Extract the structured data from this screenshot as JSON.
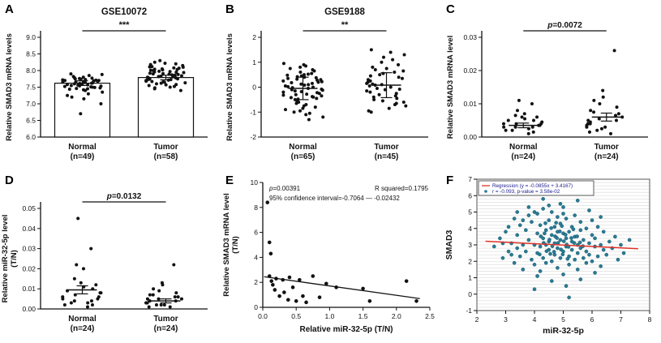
{
  "figure": {
    "background": "#ffffff",
    "text_color": "#111111"
  },
  "chart_data": [
    {
      "panel": "A",
      "type": "dot-groups",
      "title": "GSE10072",
      "sig": "***",
      "ylabel": "Relative SMAD3 mRNA levels",
      "ylim": [
        6.0,
        9.0
      ],
      "yticks": [
        "6.0",
        "6.5",
        "7.0",
        "7.5",
        "8.0",
        "8.5",
        "9.0"
      ],
      "bar_style": "bar",
      "groups": [
        {
          "label": "Normal",
          "n_label": "(n=49)",
          "mean": 7.62,
          "err": 0.07,
          "values": [
            7.45,
            7.5,
            7.52,
            7.55,
            7.57,
            7.6,
            7.62,
            7.65,
            7.68,
            7.7,
            7.72,
            7.75,
            7.48,
            7.53,
            7.58,
            7.63,
            7.67,
            7.71,
            7.74,
            7.78,
            7.42,
            7.46,
            7.51,
            7.56,
            7.61,
            7.66,
            7.69,
            7.73,
            7.77,
            7.8,
            7.44,
            7.49,
            7.54,
            7.59,
            7.64,
            7.7,
            7.76,
            7.82,
            7.85,
            7.4,
            7.35,
            7.3,
            7.25,
            7.2,
            7.15,
            7.0,
            6.7,
            7.88,
            7.9
          ]
        },
        {
          "label": "Tumor",
          "n_label": "(n=58)",
          "mean": 7.79,
          "err": 0.07,
          "values": [
            7.5,
            7.55,
            7.6,
            7.62,
            7.65,
            7.68,
            7.7,
            7.72,
            7.74,
            7.76,
            7.78,
            7.8,
            7.82,
            7.84,
            7.86,
            7.88,
            7.9,
            7.92,
            7.95,
            7.98,
            8.0,
            8.02,
            8.05,
            8.08,
            8.1,
            8.15,
            8.2,
            8.25,
            7.52,
            7.57,
            7.63,
            7.67,
            7.71,
            7.75,
            7.79,
            7.83,
            7.87,
            7.91,
            7.94,
            7.97,
            8.01,
            8.04,
            8.07,
            8.12,
            8.18,
            7.45,
            7.4,
            7.58,
            7.66,
            7.73,
            7.81,
            7.89,
            7.96,
            8.03,
            8.11,
            8.22,
            8.3,
            7.48
          ]
        }
      ]
    },
    {
      "panel": "B",
      "type": "dot-groups",
      "title": "GSE9188",
      "sig": "**",
      "ylabel": "Relative SMAD3 mRNA levels",
      "ylim": [
        -2,
        2
      ],
      "yticks": [
        "-2",
        "-1",
        "0",
        "1",
        "2"
      ],
      "bar_style": "mean",
      "groups": [
        {
          "label": "Normal",
          "n_label": "(n=65)",
          "mean": -0.05,
          "err": 0.45,
          "values": [
            -0.05,
            0.0,
            0.05,
            -0.1,
            0.1,
            -0.15,
            0.15,
            -0.2,
            0.2,
            -0.25,
            0.25,
            -0.3,
            0.3,
            -0.35,
            0.35,
            -0.4,
            0.4,
            -0.45,
            0.45,
            -0.5,
            0.5,
            -0.55,
            0.55,
            -0.6,
            0.6,
            -0.65,
            0.65,
            -0.7,
            0.7,
            -0.75,
            0.75,
            -0.8,
            0.8,
            -0.85,
            0.85,
            -0.9,
            -0.95,
            -1.0,
            -1.05,
            -1.1,
            -1.2,
            -1.3,
            0.02,
            -0.02,
            0.08,
            -0.08,
            0.12,
            -0.12,
            0.18,
            -0.18,
            0.22,
            -0.22,
            0.28,
            -0.28,
            0.32,
            -0.32,
            0.38,
            -0.38,
            0.42,
            -0.42,
            0.48,
            -0.48,
            0.52,
            0.9,
            0.95
          ]
        },
        {
          "label": "Tumor",
          "n_label": "(n=45)",
          "mean": 0.08,
          "err": 0.5,
          "values": [
            0.0,
            0.05,
            -0.05,
            0.1,
            -0.1,
            0.15,
            -0.15,
            0.2,
            -0.2,
            0.25,
            -0.25,
            0.3,
            -0.3,
            0.35,
            -0.35,
            0.4,
            -0.4,
            0.45,
            -0.45,
            0.5,
            -0.5,
            0.55,
            -0.55,
            0.6,
            -0.6,
            0.65,
            -0.65,
            0.7,
            -0.7,
            0.75,
            -0.75,
            0.8,
            -0.85,
            0.9,
            -0.95,
            1.0,
            1.1,
            1.2,
            1.3,
            1.4,
            1.5,
            0.08,
            -0.08,
            0.12,
            -1.0
          ]
        }
      ]
    },
    {
      "panel": "C",
      "type": "dot-groups",
      "title": "",
      "sig": "p=0.0072",
      "ylabel": "Relative SMAD3 mRNA  level",
      "ylim": [
        0,
        0.03
      ],
      "yticks": [
        "0.00",
        "0.01",
        "0.02",
        "0.03"
      ],
      "bar_style": "mean",
      "groups": [
        {
          "label": "Normal",
          "n_label": "(n=24)",
          "mean": 0.0035,
          "err": 0.0007,
          "values": [
            0.001,
            0.0015,
            0.002,
            0.002,
            0.0025,
            0.003,
            0.003,
            0.003,
            0.0035,
            0.0035,
            0.004,
            0.004,
            0.004,
            0.0045,
            0.005,
            0.005,
            0.0055,
            0.006,
            0.006,
            0.0065,
            0.007,
            0.008,
            0.01,
            0.011
          ]
        },
        {
          "label": "Tumor",
          "n_label": "(n=24)",
          "mean": 0.006,
          "err": 0.0012,
          "values": [
            0.001,
            0.0015,
            0.002,
            0.0025,
            0.003,
            0.003,
            0.0035,
            0.004,
            0.004,
            0.0045,
            0.005,
            0.005,
            0.0055,
            0.006,
            0.0065,
            0.007,
            0.0075,
            0.008,
            0.009,
            0.01,
            0.011,
            0.012,
            0.014,
            0.026
          ]
        }
      ]
    },
    {
      "panel": "D",
      "type": "dot-groups",
      "title": "",
      "sig": "p=0.0132",
      "ylabel": "Relative miR-32-5p level",
      "ylabel2": "(T/N)",
      "ylim": [
        0,
        0.05
      ],
      "yticks": [
        "0.00",
        "0.01",
        "0.02",
        "0.03",
        "0.04",
        "0.05"
      ],
      "bar_style": "mean",
      "groups": [
        {
          "label": "Normal",
          "n_label": "(n=24)",
          "mean": 0.0095,
          "err": 0.002,
          "values": [
            0.001,
            0.002,
            0.002,
            0.003,
            0.003,
            0.004,
            0.004,
            0.005,
            0.005,
            0.006,
            0.006,
            0.007,
            0.008,
            0.008,
            0.009,
            0.01,
            0.011,
            0.012,
            0.013,
            0.015,
            0.02,
            0.022,
            0.03,
            0.045
          ]
        },
        {
          "label": "Tumor",
          "n_label": "(n=24)",
          "mean": 0.004,
          "err": 0.001,
          "values": [
            0.001,
            0.001,
            0.002,
            0.002,
            0.002,
            0.003,
            0.003,
            0.003,
            0.004,
            0.004,
            0.004,
            0.005,
            0.005,
            0.005,
            0.006,
            0.006,
            0.007,
            0.007,
            0.008,
            0.009,
            0.01,
            0.012,
            0.013,
            0.022
          ]
        }
      ]
    },
    {
      "panel": "E",
      "type": "scatter",
      "xlabel": "Relative miR-32-5p (T/N)",
      "ylabel": "Relative SMAD3 mRNA  level",
      "ylabel2": "(T/N)",
      "xlim": [
        0,
        2.5
      ],
      "ylim": [
        0,
        10
      ],
      "xticks": [
        "0.0",
        "0.5",
        "1.0",
        "1.5",
        "2.0",
        "2.5"
      ],
      "yticks": [
        "0",
        "2",
        "4",
        "6",
        "8",
        "10"
      ],
      "annotations": {
        "p": "p=0.00391",
        "r2": "R squared=0.1795",
        "ci": "95% confidence interval=-0.7064 — -0.02432"
      },
      "line": {
        "x1": 0.02,
        "y1": 2.45,
        "x2": 2.35,
        "y2": 0.7
      },
      "points": [
        [
          0.07,
          8.4
        ],
        [
          0.1,
          5.2
        ],
        [
          0.12,
          4.3
        ],
        [
          0.1,
          2.5
        ],
        [
          0.13,
          2.1
        ],
        [
          0.15,
          1.8
        ],
        [
          0.18,
          1.4
        ],
        [
          0.2,
          2.3
        ],
        [
          0.25,
          0.9
        ],
        [
          0.3,
          2.2
        ],
        [
          0.32,
          1.2
        ],
        [
          0.38,
          0.6
        ],
        [
          0.4,
          2.4
        ],
        [
          0.45,
          1.6
        ],
        [
          0.5,
          0.5
        ],
        [
          0.55,
          2.2
        ],
        [
          0.6,
          0.9
        ],
        [
          0.65,
          0.4
        ],
        [
          0.75,
          2.5
        ],
        [
          0.85,
          0.8
        ],
        [
          0.95,
          1.9
        ],
        [
          1.1,
          1.6
        ],
        [
          1.5,
          1.5
        ],
        [
          1.6,
          0.5
        ],
        [
          2.15,
          2.1
        ],
        [
          2.3,
          0.5
        ]
      ]
    },
    {
      "panel": "F",
      "type": "scatter-grid",
      "xlabel": "miR-32-5p",
      "ylabel": "SMAD3",
      "xlim": [
        2,
        8
      ],
      "ylim": [
        -1,
        7
      ],
      "xticks": [
        "2",
        "3",
        "4",
        "5",
        "6",
        "7",
        "8"
      ],
      "yticks": [
        "-1",
        "0",
        "1",
        "2",
        "3",
        "4",
        "5",
        "6",
        "7"
      ],
      "legend": [
        "Regression (y = -0.0855x + 3.4167)",
        "r = -0.093, p-value = 3.58e-02"
      ],
      "line": {
        "slope": -0.0855,
        "intercept": 3.4167,
        "x_range": [
          2.3,
          7.6
        ]
      },
      "point_color": "#2b7a93",
      "line_color": "#e03127",
      "grid_color": "#d9d9d9",
      "legend_text_color": "#1a1a8c",
      "points": [
        [
          2.6,
          2.9
        ],
        [
          2.8,
          3.4
        ],
        [
          2.9,
          2.2
        ],
        [
          3.0,
          3.8
        ],
        [
          3.1,
          2.6
        ],
        [
          3.1,
          4.1
        ],
        [
          3.2,
          3.1
        ],
        [
          3.3,
          1.9
        ],
        [
          3.3,
          4.6
        ],
        [
          3.4,
          2.8
        ],
        [
          3.4,
          3.6
        ],
        [
          3.5,
          2.3
        ],
        [
          3.5,
          4.2
        ],
        [
          3.6,
          3.0
        ],
        [
          3.6,
          1.5
        ],
        [
          3.7,
          3.9
        ],
        [
          3.7,
          2.6
        ],
        [
          3.8,
          4.8
        ],
        [
          3.8,
          3.3
        ],
        [
          3.9,
          2.1
        ],
        [
          3.9,
          4.4
        ],
        [
          4.0,
          3.0
        ],
        [
          4.0,
          1.8
        ],
        [
          4.0,
          5.0
        ],
        [
          4.1,
          2.5
        ],
        [
          4.1,
          3.7
        ],
        [
          4.1,
          4.9
        ],
        [
          4.2,
          2.9
        ],
        [
          4.2,
          1.4
        ],
        [
          4.2,
          4.2
        ],
        [
          4.3,
          3.4
        ],
        [
          4.3,
          2.2
        ],
        [
          4.3,
          5.2
        ],
        [
          4.4,
          3.0
        ],
        [
          4.4,
          3.9
        ],
        [
          4.4,
          1.9
        ],
        [
          4.5,
          2.7
        ],
        [
          4.5,
          4.5
        ],
        [
          4.5,
          3.2
        ],
        [
          4.6,
          2.0
        ],
        [
          4.6,
          3.6
        ],
        [
          4.6,
          5.0
        ],
        [
          4.7,
          2.4
        ],
        [
          4.7,
          3.1
        ],
        [
          4.7,
          4.1
        ],
        [
          4.8,
          2.8
        ],
        [
          4.8,
          1.6
        ],
        [
          4.8,
          3.8
        ],
        [
          4.8,
          4.7
        ],
        [
          4.9,
          2.2
        ],
        [
          4.9,
          3.3
        ],
        [
          4.9,
          4.3
        ],
        [
          5.0,
          2.6
        ],
        [
          5.0,
          3.7
        ],
        [
          5.0,
          1.2
        ],
        [
          5.0,
          5.3
        ],
        [
          5.1,
          2.9
        ],
        [
          5.1,
          3.4
        ],
        [
          5.1,
          4.6
        ],
        [
          5.2,
          2.3
        ],
        [
          5.2,
          3.8
        ],
        [
          5.2,
          1.8
        ],
        [
          5.3,
          2.7
        ],
        [
          5.3,
          4.1
        ],
        [
          5.3,
          3.2
        ],
        [
          5.4,
          2.1
        ],
        [
          5.4,
          3.5
        ],
        [
          5.4,
          4.8
        ],
        [
          5.5,
          2.5
        ],
        [
          5.5,
          3.0
        ],
        [
          5.5,
          1.5
        ],
        [
          5.6,
          3.9
        ],
        [
          5.6,
          2.8
        ],
        [
          5.6,
          4.4
        ],
        [
          5.7,
          2.2
        ],
        [
          5.7,
          3.3
        ],
        [
          5.8,
          2.6
        ],
        [
          5.8,
          4.0
        ],
        [
          5.8,
          1.9
        ],
        [
          5.9,
          3.1
        ],
        [
          5.9,
          2.4
        ],
        [
          6.0,
          3.6
        ],
        [
          6.0,
          2.0
        ],
        [
          6.0,
          4.5
        ],
        [
          6.1,
          2.9
        ],
        [
          6.1,
          3.4
        ],
        [
          6.2,
          2.3
        ],
        [
          6.2,
          4.1
        ],
        [
          6.3,
          3.0
        ],
        [
          6.3,
          1.7
        ],
        [
          6.4,
          2.7
        ],
        [
          6.4,
          3.8
        ],
        [
          6.5,
          2.4
        ],
        [
          6.6,
          3.2
        ],
        [
          6.7,
          2.8
        ],
        [
          6.8,
          3.5
        ],
        [
          6.9,
          2.1
        ],
        [
          7.0,
          3.0
        ],
        [
          7.1,
          2.5
        ],
        [
          7.3,
          3.3
        ],
        [
          2.9,
          3.1
        ],
        [
          3.2,
          2.4
        ],
        [
          3.6,
          4.5
        ],
        [
          4.1,
          1.1
        ],
        [
          4.6,
          0.8
        ],
        [
          5.1,
          0.5
        ],
        [
          5.6,
          0.9
        ],
        [
          6.1,
          1.3
        ],
        [
          4.3,
          5.8
        ],
        [
          4.9,
          5.5
        ],
        [
          5.5,
          5.7
        ],
        [
          4.0,
          0.3
        ],
        [
          5.2,
          -0.2
        ],
        [
          4.4,
          6.3
        ],
        [
          5.0,
          4.9
        ],
        [
          4.5,
          5.4
        ],
        [
          3.8,
          5.3
        ],
        [
          5.9,
          5.1
        ],
        [
          6.3,
          4.7
        ],
        [
          3.4,
          5.0
        ],
        [
          4.62,
          2.92
        ],
        [
          4.72,
          3.52
        ],
        [
          4.82,
          3.12
        ],
        [
          4.92,
          2.72
        ],
        [
          5.02,
          3.22
        ],
        [
          5.12,
          3.02
        ],
        [
          4.52,
          3.32
        ],
        [
          4.42,
          2.62
        ],
        [
          4.32,
          3.12
        ],
        [
          4.22,
          3.52
        ],
        [
          4.68,
          2.58
        ],
        [
          4.78,
          3.42
        ],
        [
          4.88,
          3.82
        ],
        [
          4.98,
          2.42
        ],
        [
          5.08,
          3.62
        ],
        [
          5.18,
          2.88
        ],
        [
          5.28,
          3.42
        ],
        [
          4.58,
          4.02
        ],
        [
          4.38,
          4.32
        ],
        [
          4.18,
          2.42
        ],
        [
          5.38,
          3.12
        ],
        [
          5.48,
          3.52
        ],
        [
          5.58,
          3.15
        ],
        [
          5.68,
          2.92
        ],
        [
          4.35,
          3.7
        ],
        [
          4.55,
          2.45
        ],
        [
          4.75,
          4.35
        ],
        [
          4.95,
          4.15
        ],
        [
          5.15,
          2.15
        ],
        [
          5.35,
          3.95
        ]
      ]
    }
  ]
}
